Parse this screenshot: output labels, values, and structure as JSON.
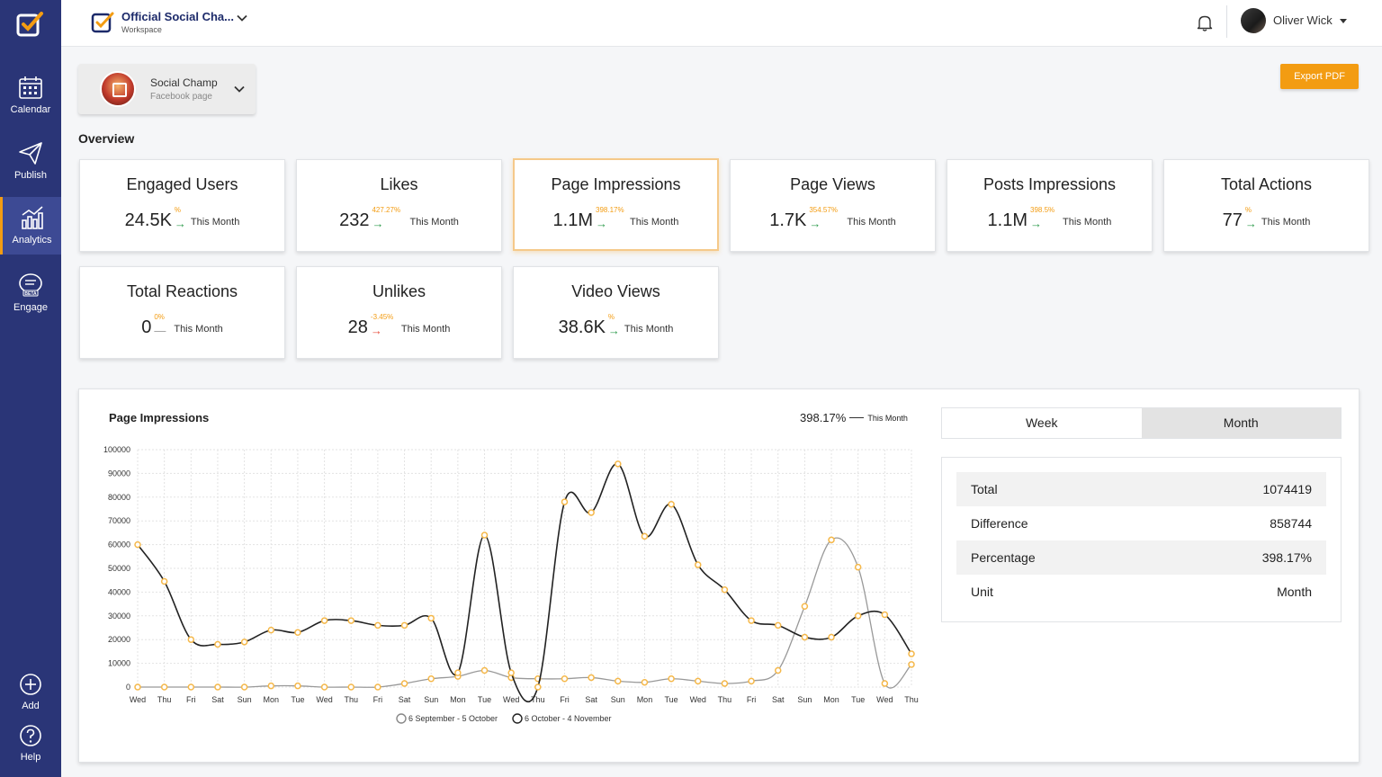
{
  "sidebar": {
    "items": [
      {
        "label": "Calendar",
        "icon": "calendar-icon"
      },
      {
        "label": "Publish",
        "icon": "paper-plane-icon"
      },
      {
        "label": "Analytics",
        "icon": "analytics-icon"
      },
      {
        "label": "Engage",
        "icon": "chat-beta-icon",
        "badge": "BETA"
      },
      {
        "label": "Add",
        "icon": "plus-circle-icon"
      },
      {
        "label": "Help",
        "icon": "help-circle-icon"
      }
    ]
  },
  "header": {
    "workspace_name": "Official Social Cha...",
    "workspace_sub": "Workspace",
    "user_name": "Oliver Wick"
  },
  "page_selector": {
    "name": "Social Champ",
    "sub": "Facebook page"
  },
  "export_label": "Export PDF",
  "overview_title": "Overview",
  "metrics": [
    {
      "title": "Engaged Users",
      "value": "24.5K",
      "pct": "%",
      "trend": "up",
      "period": "This Month"
    },
    {
      "title": "Likes",
      "value": "232",
      "pct": "427.27%",
      "trend": "up",
      "period": "This Month"
    },
    {
      "title": "Page Impressions",
      "value": "1.1M",
      "pct": "398.17%",
      "trend": "up",
      "period": "This Month"
    },
    {
      "title": "Page Views",
      "value": "1.7K",
      "pct": "354.57%",
      "trend": "up",
      "period": "This Month"
    },
    {
      "title": "Posts Impressions",
      "value": "1.1M",
      "pct": "398.5%",
      "trend": "up",
      "period": "This Month"
    },
    {
      "title": "Total Actions",
      "value": "77",
      "pct": "%",
      "trend": "up",
      "period": "This Month"
    },
    {
      "title": "Total Reactions",
      "value": "0",
      "pct": "0%",
      "trend": "flat",
      "period": "This Month"
    },
    {
      "title": "Unlikes",
      "value": "28",
      "pct": "-3.45%",
      "trend": "down",
      "period": "This Month"
    },
    {
      "title": "Video Views",
      "value": "38.6K",
      "pct": "%",
      "trend": "up",
      "period": "This Month"
    }
  ],
  "chart_panel": {
    "title": "Page Impressions",
    "summary_pct": "398.17%",
    "summary_period": "This Month",
    "tabs": [
      "Week",
      "Month"
    ],
    "active_tab": "Month",
    "stats": [
      {
        "label": "Total",
        "value": "1074419"
      },
      {
        "label": "Difference",
        "value": "858744"
      },
      {
        "label": "Percentage",
        "value": "398.17%"
      },
      {
        "label": "Unit",
        "value": "Month"
      }
    ]
  },
  "colors": {
    "sidebar": "#2a3577",
    "accent": "#f39c12",
    "up": "#2e9b4c",
    "down": "#e74c3c",
    "current_line": "#222222",
    "previous_line": "#999999",
    "marker": "#f5b84a"
  },
  "chart_data": {
    "type": "line",
    "title": "Page Impressions",
    "x": [
      "Wed",
      "Thu",
      "Fri",
      "Sat",
      "Sun",
      "Mon",
      "Tue",
      "Wed",
      "Thu",
      "Fri",
      "Sat",
      "Sun",
      "Mon",
      "Tue",
      "Wed",
      "Thu",
      "Fri",
      "Sat",
      "Sun",
      "Mon",
      "Tue",
      "Wed",
      "Thu",
      "Fri",
      "Sat",
      "Sun",
      "Mon",
      "Tue",
      "Wed",
      "Thu"
    ],
    "ylim": [
      0,
      100000
    ],
    "yticks": [
      0,
      10000,
      20000,
      30000,
      40000,
      50000,
      60000,
      70000,
      80000,
      90000,
      100000
    ],
    "grid": true,
    "legend_position": "bottom-center",
    "series": [
      {
        "name": "6 September - 5 October",
        "color": "#999999",
        "values": [
          0,
          0,
          0,
          0,
          0,
          500,
          500,
          0,
          0,
          0,
          1500,
          3500,
          4500,
          7000,
          4000,
          3500,
          3500,
          4000,
          2500,
          2000,
          3500,
          2500,
          1500,
          2500,
          7000,
          34000,
          62000,
          50500,
          1500,
          9500
        ]
      },
      {
        "name": "6 October - 4 November",
        "color": "#222222",
        "values": [
          60000,
          44500,
          20000,
          18000,
          19000,
          24000,
          23000,
          28000,
          28000,
          26000,
          26000,
          29000,
          6000,
          64000,
          6000,
          0,
          78000,
          73500,
          94000,
          63500,
          77000,
          51500,
          41000,
          28000,
          26000,
          21000,
          21000,
          30000,
          30500,
          14000
        ]
      }
    ]
  }
}
